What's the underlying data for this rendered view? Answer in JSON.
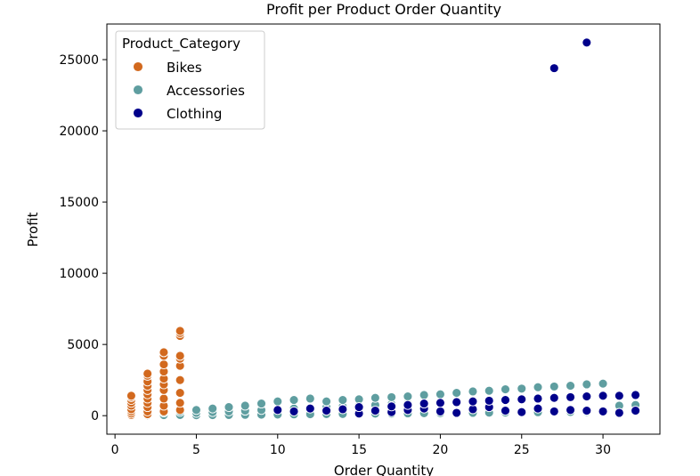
{
  "chart_data": {
    "type": "scatter",
    "title": "Profit per Product Order Quantity",
    "xlabel": "Order Quantity",
    "ylabel": "Profit",
    "xlim": [
      -0.5,
      33.5
    ],
    "ylim": [
      -1300,
      27500
    ],
    "xticks": [
      0,
      5,
      10,
      15,
      20,
      25,
      30
    ],
    "yticks": [
      0,
      5000,
      10000,
      15000,
      20000,
      25000
    ],
    "grid": false,
    "legend": {
      "title": "Product_Category",
      "placement": "top-left"
    },
    "series": [
      {
        "name": "Bikes",
        "color": "#d2691e",
        "points": [
          [
            1,
            50
          ],
          [
            1,
            150
          ],
          [
            1,
            300
          ],
          [
            1,
            450
          ],
          [
            1,
            700
          ],
          [
            1,
            900
          ],
          [
            1,
            1100
          ],
          [
            1,
            1300
          ],
          [
            1,
            1400
          ],
          [
            2,
            100
          ],
          [
            2,
            300
          ],
          [
            2,
            600
          ],
          [
            2,
            900
          ],
          [
            2,
            1200
          ],
          [
            2,
            1500
          ],
          [
            2,
            1800
          ],
          [
            2,
            2100
          ],
          [
            2,
            2400
          ],
          [
            2,
            2800
          ],
          [
            2,
            2950
          ],
          [
            3,
            300
          ],
          [
            3,
            700
          ],
          [
            3,
            1200
          ],
          [
            3,
            1800
          ],
          [
            3,
            2200
          ],
          [
            3,
            2600
          ],
          [
            3,
            3100
          ],
          [
            3,
            3600
          ],
          [
            3,
            4200
          ],
          [
            3,
            4450
          ],
          [
            4,
            400
          ],
          [
            4,
            900
          ],
          [
            4,
            1600
          ],
          [
            4,
            2500
          ],
          [
            4,
            3500
          ],
          [
            4,
            4000
          ],
          [
            4,
            4200
          ],
          [
            4,
            5600
          ],
          [
            4,
            5800
          ],
          [
            4,
            5950
          ]
        ]
      },
      {
        "name": "Accessories",
        "color": "#5f9ea0",
        "points": [
          [
            1,
            20
          ],
          [
            1,
            80
          ],
          [
            1,
            200
          ],
          [
            2,
            30
          ],
          [
            2,
            150
          ],
          [
            3,
            40
          ],
          [
            3,
            220
          ],
          [
            4,
            50
          ],
          [
            4,
            280
          ],
          [
            5,
            30
          ],
          [
            5,
            200
          ],
          [
            5,
            400
          ],
          [
            6,
            40
          ],
          [
            6,
            250
          ],
          [
            6,
            500
          ],
          [
            7,
            50
          ],
          [
            7,
            300
          ],
          [
            7,
            600
          ],
          [
            8,
            60
          ],
          [
            8,
            350
          ],
          [
            8,
            700
          ],
          [
            9,
            70
          ],
          [
            9,
            400
          ],
          [
            9,
            850
          ],
          [
            10,
            80
          ],
          [
            10,
            450
          ],
          [
            10,
            1000
          ],
          [
            11,
            90
          ],
          [
            11,
            500
          ],
          [
            11,
            1100
          ],
          [
            12,
            100
          ],
          [
            12,
            550
          ],
          [
            12,
            1200
          ],
          [
            13,
            110
          ],
          [
            13,
            600
          ],
          [
            13,
            1000
          ],
          [
            14,
            120
          ],
          [
            14,
            650
          ],
          [
            14,
            1100
          ],
          [
            15,
            130
          ],
          [
            15,
            700
          ],
          [
            15,
            1150
          ],
          [
            16,
            140
          ],
          [
            16,
            750
          ],
          [
            16,
            1250
          ],
          [
            17,
            150
          ],
          [
            17,
            800
          ],
          [
            17,
            1300
          ],
          [
            18,
            160
          ],
          [
            18,
            850
          ],
          [
            18,
            1350
          ],
          [
            19,
            170
          ],
          [
            19,
            900
          ],
          [
            19,
            1450
          ],
          [
            20,
            180
          ],
          [
            20,
            950
          ],
          [
            20,
            1500
          ],
          [
            21,
            190
          ],
          [
            21,
            1000
          ],
          [
            21,
            1600
          ],
          [
            22,
            200
          ],
          [
            22,
            1050
          ],
          [
            22,
            1700
          ],
          [
            23,
            210
          ],
          [
            23,
            1100
          ],
          [
            23,
            1750
          ],
          [
            24,
            220
          ],
          [
            24,
            1150
          ],
          [
            24,
            1850
          ],
          [
            25,
            230
          ],
          [
            25,
            1200
          ],
          [
            25,
            1900
          ],
          [
            26,
            240
          ],
          [
            26,
            1250
          ],
          [
            26,
            2000
          ],
          [
            27,
            250
          ],
          [
            27,
            1300
          ],
          [
            27,
            2050
          ],
          [
            28,
            260
          ],
          [
            28,
            1350
          ],
          [
            28,
            2100
          ],
          [
            29,
            270
          ],
          [
            29,
            1400
          ],
          [
            29,
            2200
          ],
          [
            30,
            280
          ],
          [
            30,
            1450
          ],
          [
            30,
            2250
          ],
          [
            31,
            290
          ],
          [
            31,
            700
          ],
          [
            32,
            300
          ],
          [
            32,
            750
          ]
        ]
      },
      {
        "name": "Clothing",
        "color": "#00008b",
        "points": [
          [
            10,
            400
          ],
          [
            11,
            300
          ],
          [
            12,
            500
          ],
          [
            13,
            350
          ],
          [
            14,
            450
          ],
          [
            15,
            150
          ],
          [
            15,
            600
          ],
          [
            16,
            350
          ],
          [
            17,
            250
          ],
          [
            17,
            650
          ],
          [
            18,
            400
          ],
          [
            18,
            750
          ],
          [
            19,
            500
          ],
          [
            19,
            850
          ],
          [
            20,
            300
          ],
          [
            20,
            900
          ],
          [
            21,
            200
          ],
          [
            21,
            950
          ],
          [
            22,
            450
          ],
          [
            22,
            1000
          ],
          [
            23,
            600
          ],
          [
            23,
            1050
          ],
          [
            24,
            350
          ],
          [
            24,
            1100
          ],
          [
            25,
            250
          ],
          [
            25,
            1150
          ],
          [
            26,
            500
          ],
          [
            26,
            1200
          ],
          [
            27,
            300
          ],
          [
            27,
            1250
          ],
          [
            27,
            24400
          ],
          [
            28,
            400
          ],
          [
            28,
            1300
          ],
          [
            29,
            350
          ],
          [
            29,
            1350
          ],
          [
            29,
            26200
          ],
          [
            30,
            300
          ],
          [
            30,
            1400
          ],
          [
            31,
            200
          ],
          [
            31,
            1400
          ],
          [
            32,
            350
          ],
          [
            32,
            1450
          ]
        ]
      }
    ]
  }
}
